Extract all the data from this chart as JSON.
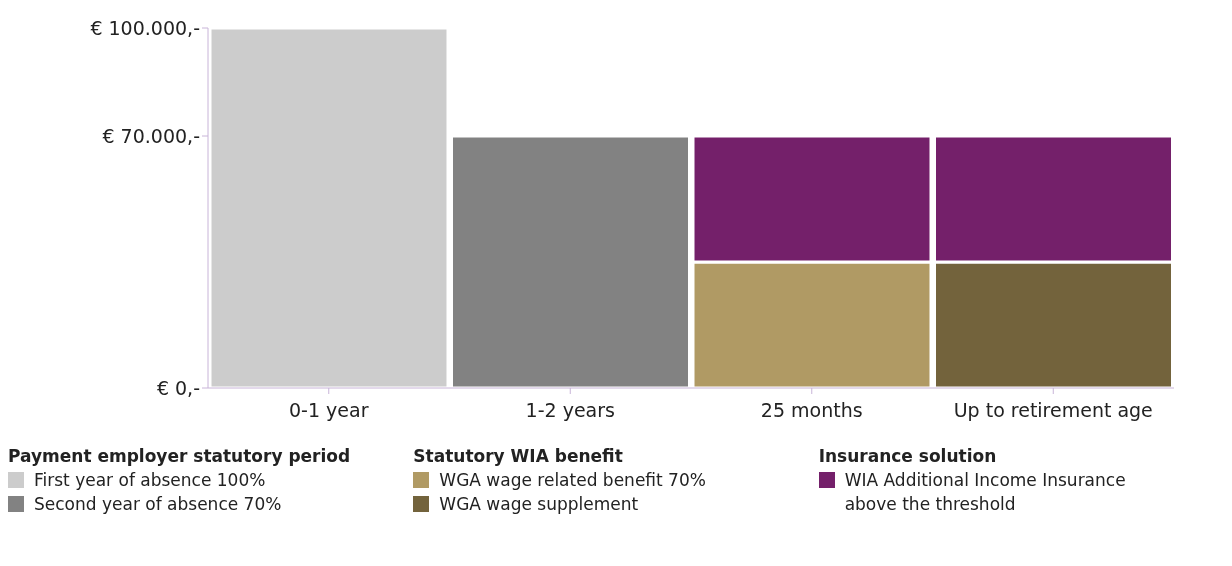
{
  "chart_data": {
    "type": "bar",
    "stacked": true,
    "categories": [
      "0-1 year",
      "1-2 years",
      "25 months",
      "Up to retirement age"
    ],
    "series": [
      {
        "name": "First year of absence 100%",
        "color": "#cccccc",
        "values": [
          100000,
          null,
          null,
          null
        ]
      },
      {
        "name": "Second year of absence  70%",
        "color": "#828282",
        "values": [
          null,
          70000,
          null,
          null
        ]
      },
      {
        "name": "WGA wage related benefit  70%",
        "color": "#b09a64",
        "values": [
          null,
          null,
          35000,
          null
        ]
      },
      {
        "name": "WGA wage supplement",
        "color": "#73633c",
        "values": [
          null,
          null,
          null,
          35000
        ]
      },
      {
        "name": "WIA Additional Income Insurance above the threshold",
        "color": "#74206a",
        "values": [
          null,
          null,
          35000,
          35000
        ]
      }
    ],
    "ylim": [
      0,
      100000
    ],
    "yticks": [
      {
        "value": 0,
        "label": "€ 0,-"
      },
      {
        "value": 70000,
        "label": "€ 70.000,-"
      },
      {
        "value": 100000,
        "label": "€ 100.000,-"
      }
    ],
    "legend": "bottom",
    "annotations": [
      "Payment employer statutory period",
      "Statutory WIA benefit",
      "Insurance solution"
    ]
  }
}
